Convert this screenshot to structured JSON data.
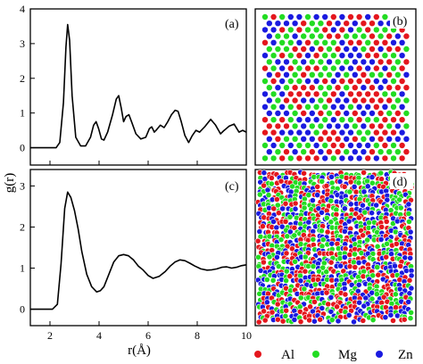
{
  "figure": {
    "ylabel": "g(r)",
    "xlabel": "r(Å)",
    "colors": {
      "Al": "#e4161d",
      "Mg": "#22dc22",
      "Zn": "#1a1ae0"
    },
    "legend": {
      "placement": "bottom-right",
      "items": [
        {
          "label": "Al",
          "color": "#e4161d"
        },
        {
          "label": "Mg",
          "color": "#22dc22"
        },
        {
          "label": "Zn",
          "color": "#1a1ae0"
        }
      ]
    }
  },
  "chart_data": [
    {
      "type": "line",
      "panel_label": "(a)",
      "ylabel": "g(r)",
      "xlim": [
        1.2,
        10
      ],
      "ylim": [
        -0.5,
        4
      ],
      "y_ticks": [
        "0",
        "1",
        "2",
        "3",
        "4"
      ],
      "series": [
        {
          "x": [
            1.2,
            2.25,
            2.4,
            2.55,
            2.65,
            2.72,
            2.8,
            2.9,
            3.05,
            3.25,
            3.45,
            3.65,
            3.78,
            3.88,
            3.98,
            4.1,
            4.2,
            4.35,
            4.55,
            4.7,
            4.8,
            4.9,
            5.0,
            5.1,
            5.22,
            5.35,
            5.5,
            5.7,
            5.9,
            6.05,
            6.15,
            6.25,
            6.35,
            6.5,
            6.65,
            6.8,
            6.95,
            7.1,
            7.22,
            7.35,
            7.5,
            7.65,
            7.8,
            7.95,
            8.1,
            8.3,
            8.55,
            8.75,
            8.95,
            9.1,
            9.3,
            9.5,
            9.7,
            9.85,
            10.0
          ],
          "y": [
            0.0,
            0.0,
            0.15,
            1.3,
            2.9,
            3.55,
            3.1,
            1.5,
            0.3,
            0.05,
            0.05,
            0.3,
            0.65,
            0.75,
            0.55,
            0.25,
            0.22,
            0.45,
            0.95,
            1.4,
            1.5,
            1.15,
            0.75,
            0.9,
            0.95,
            0.7,
            0.4,
            0.25,
            0.3,
            0.55,
            0.6,
            0.45,
            0.52,
            0.65,
            0.58,
            0.75,
            0.95,
            1.08,
            1.05,
            0.75,
            0.35,
            0.15,
            0.35,
            0.5,
            0.45,
            0.6,
            0.82,
            0.65,
            0.4,
            0.5,
            0.62,
            0.68,
            0.45,
            0.5,
            0.45
          ]
        }
      ]
    },
    {
      "type": "line",
      "panel_label": "(c)",
      "ylabel": "g(r)",
      "xlabel": "r(Å)",
      "xlim": [
        1.2,
        10
      ],
      "ylim": [
        -0.4,
        3.4
      ],
      "x_ticks": [
        "2",
        "4",
        "6",
        "8",
        "10"
      ],
      "y_ticks": [
        "0",
        "1",
        "2",
        "3"
      ],
      "series": [
        {
          "x": [
            1.2,
            2.1,
            2.3,
            2.45,
            2.6,
            2.72,
            2.85,
            3.0,
            3.15,
            3.3,
            3.5,
            3.7,
            3.9,
            4.05,
            4.2,
            4.4,
            4.6,
            4.8,
            5.0,
            5.2,
            5.4,
            5.6,
            5.8,
            6.0,
            6.2,
            6.45,
            6.7,
            6.9,
            7.1,
            7.3,
            7.5,
            7.7,
            7.9,
            8.15,
            8.4,
            8.6,
            8.8,
            9.0,
            9.2,
            9.4,
            9.6,
            9.8,
            10.0
          ],
          "y": [
            0.0,
            0.0,
            0.12,
            1.1,
            2.45,
            2.85,
            2.72,
            2.4,
            1.95,
            1.4,
            0.85,
            0.55,
            0.42,
            0.45,
            0.55,
            0.85,
            1.15,
            1.3,
            1.33,
            1.3,
            1.2,
            1.05,
            0.95,
            0.82,
            0.75,
            0.8,
            0.92,
            1.05,
            1.15,
            1.2,
            1.18,
            1.12,
            1.05,
            0.98,
            0.95,
            0.96,
            0.98,
            1.02,
            1.03,
            1.0,
            1.02,
            1.06,
            1.08
          ]
        }
      ]
    }
  ],
  "snapshots": [
    {
      "panel_label": "(b)",
      "arrangement": "ordered"
    },
    {
      "panel_label": "(d)",
      "arrangement": "disordered"
    }
  ]
}
